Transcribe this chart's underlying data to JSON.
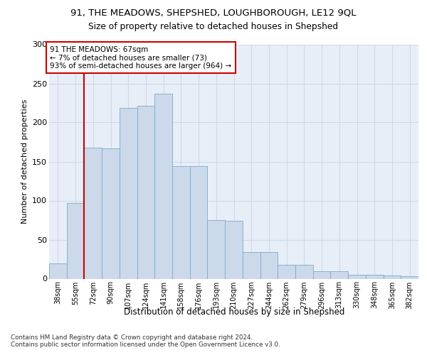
{
  "title1": "91, THE MEADOWS, SHEPSHED, LOUGHBOROUGH, LE12 9QL",
  "title2": "Size of property relative to detached houses in Shepshed",
  "xlabel": "Distribution of detached houses by size in Shepshed",
  "ylabel": "Number of detached properties",
  "bar_labels": [
    "38sqm",
    "55sqm",
    "72sqm",
    "90sqm",
    "107sqm",
    "124sqm",
    "141sqm",
    "158sqm",
    "176sqm",
    "193sqm",
    "210sqm",
    "227sqm",
    "244sqm",
    "262sqm",
    "279sqm",
    "296sqm",
    "313sqm",
    "330sqm",
    "348sqm",
    "365sqm",
    "382sqm"
  ],
  "bar_values": [
    20,
    97,
    168,
    167,
    219,
    221,
    237,
    144,
    144,
    75,
    74,
    34,
    34,
    18,
    18,
    10,
    10,
    5,
    5,
    4,
    3
  ],
  "property_line_x": 1.5,
  "annotation_text": "91 THE MEADOWS: 67sqm\n← 7% of detached houses are smaller (73)\n93% of semi-detached houses are larger (964) →",
  "bar_color": "#ccd9ea",
  "bar_edge_color": "#7aaace",
  "line_color": "#cc0000",
  "box_edge_color": "#cc0000",
  "bg_color": "#e8eef8",
  "grid_color": "#d0d8e8",
  "yticks": [
    0,
    50,
    100,
    150,
    200,
    250,
    300
  ],
  "ylim": [
    0,
    300
  ],
  "footer_text": "Contains HM Land Registry data © Crown copyright and database right 2024.\nContains public sector information licensed under the Open Government Licence v3.0."
}
